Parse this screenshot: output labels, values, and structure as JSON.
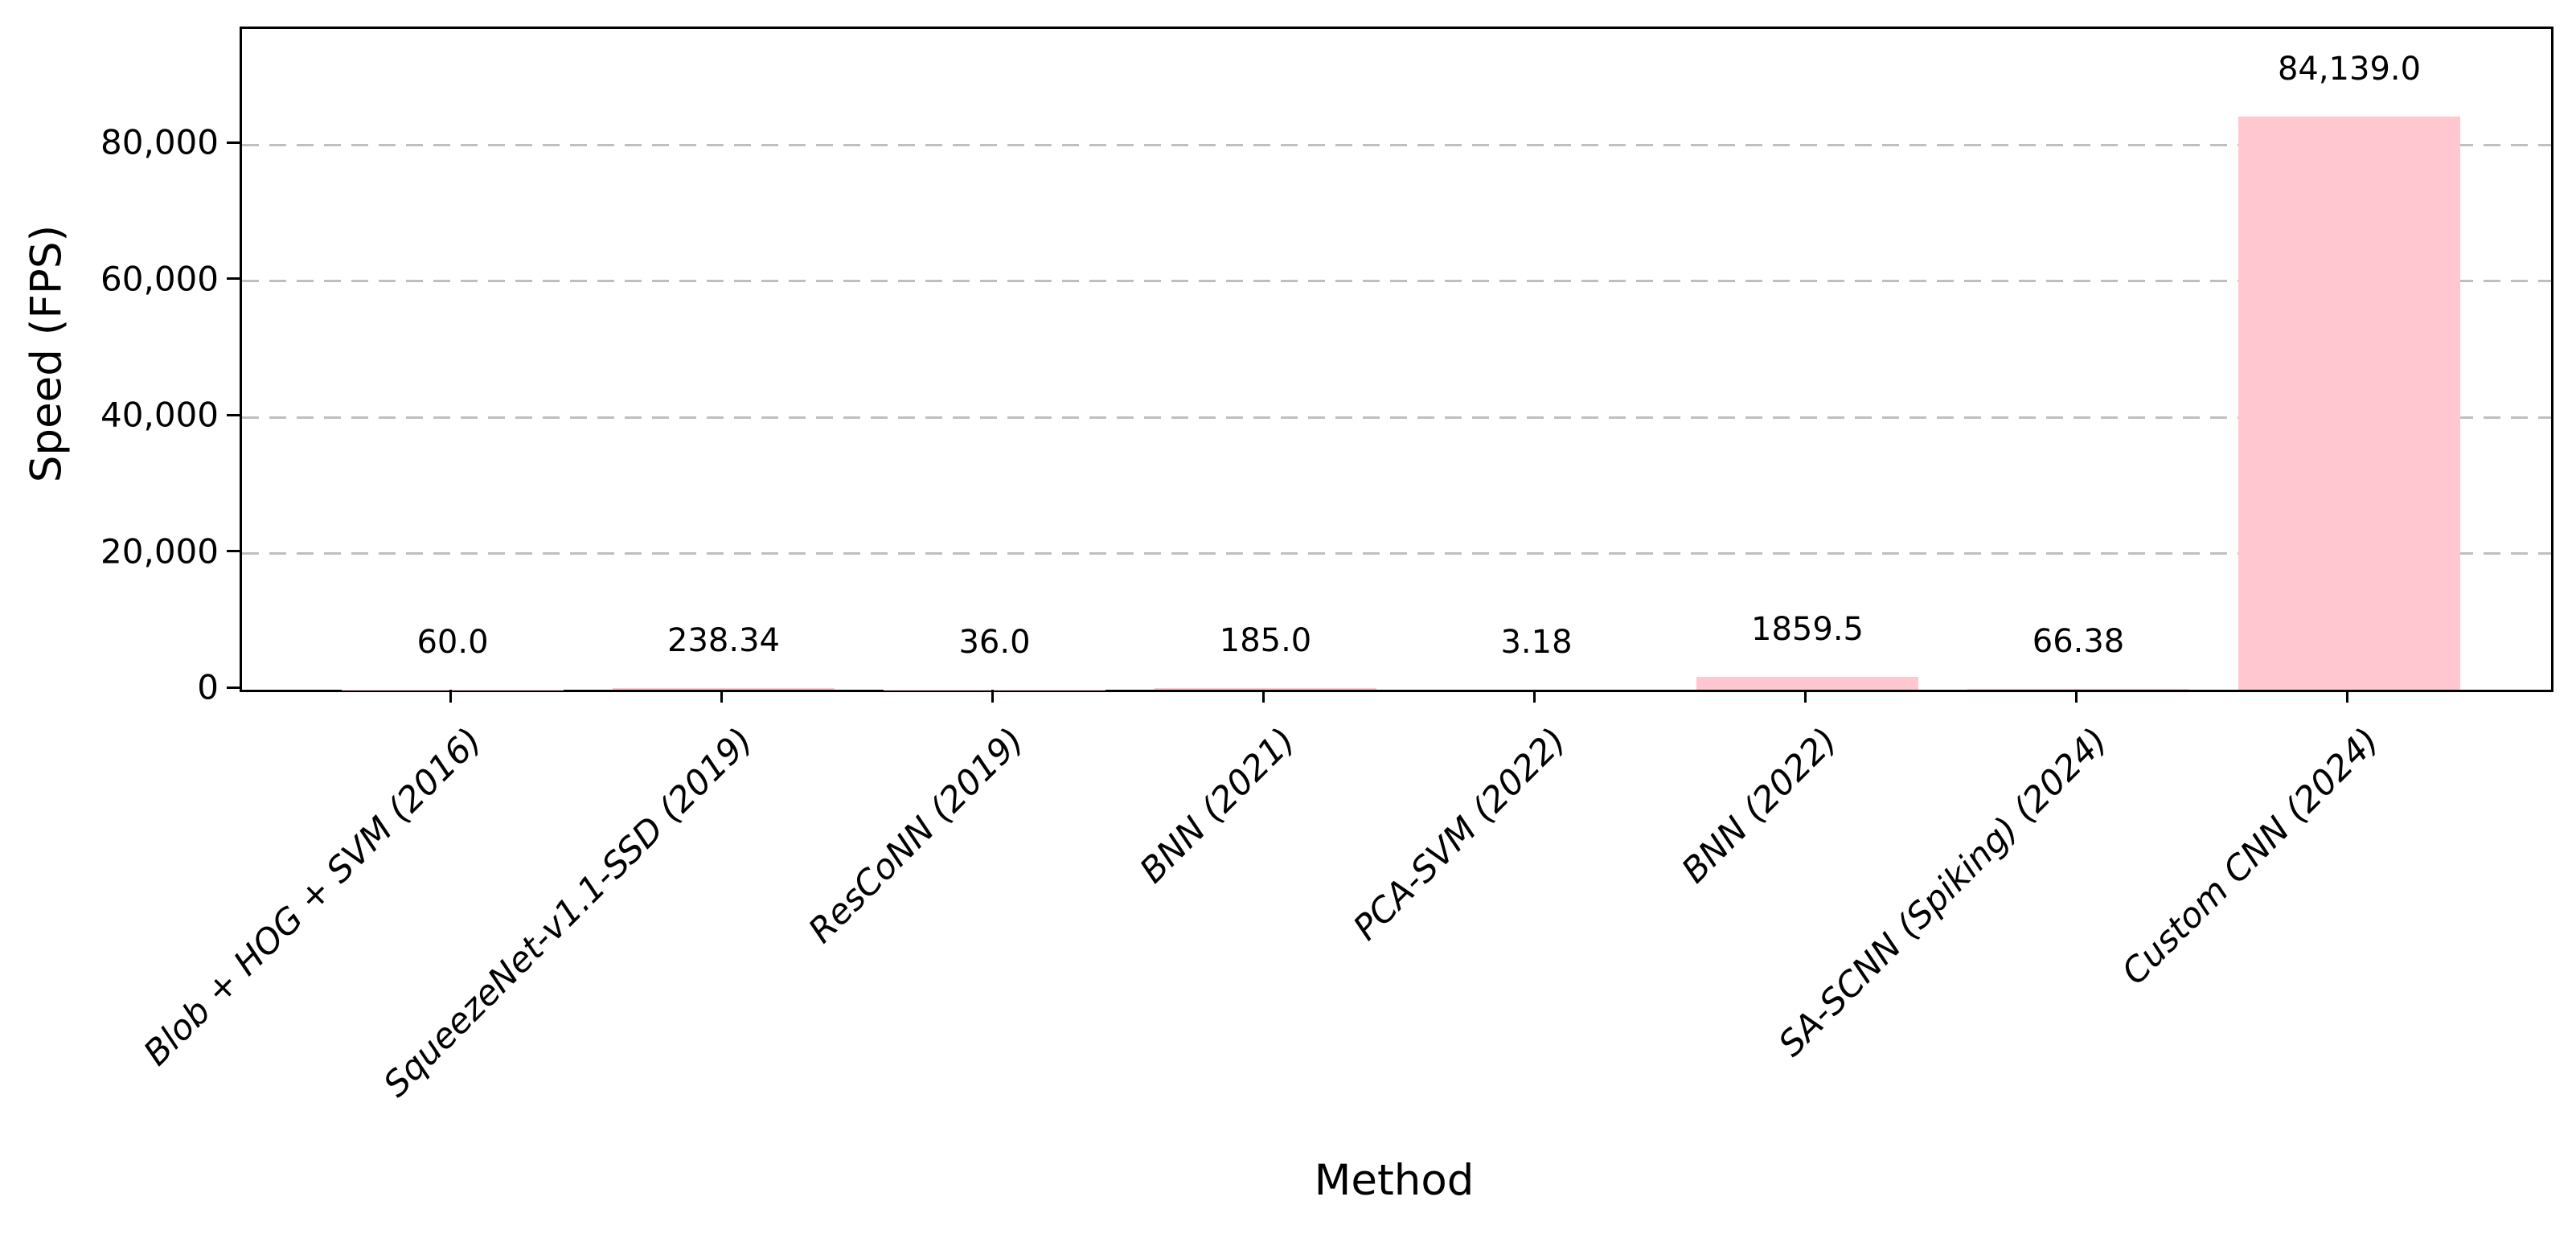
{
  "chart_data": {
    "type": "bar",
    "title": "",
    "xlabel": "Method",
    "ylabel": "Speed (FPS)",
    "categories": [
      "Blob + HOG + SVM (2016)",
      "SqueezeNet-v1.1-SSD (2019)",
      "ResCoNN (2019)",
      "BNN (2021)",
      "PCA-SVM (2022)",
      "BNN (2022)",
      "SA-SCNN (Spiking) (2024)",
      "Custom CNN (2024)"
    ],
    "values": [
      60.0,
      238.34,
      36.0,
      185.0,
      3.18,
      1859.5,
      66.38,
      84139.0
    ],
    "bar_value_labels": [
      "60.0",
      "238.34",
      "36.0",
      "185.0",
      "3.18",
      "1859.5",
      "66.38",
      "84,139.0"
    ],
    "ytick_values": [
      0,
      20000,
      40000,
      60000,
      80000
    ],
    "ytick_labels": [
      "0",
      "20,000",
      "40,000",
      "60,000",
      "80,000"
    ],
    "ylim": [
      0,
      97000
    ],
    "grid": "horizontal-dashed",
    "legend": null,
    "bar_color": "#ffc8d1",
    "gridline_color": "#bfbfbf",
    "axis_color": "#000000",
    "xtick_label_style": "italic, rotated 45deg"
  }
}
